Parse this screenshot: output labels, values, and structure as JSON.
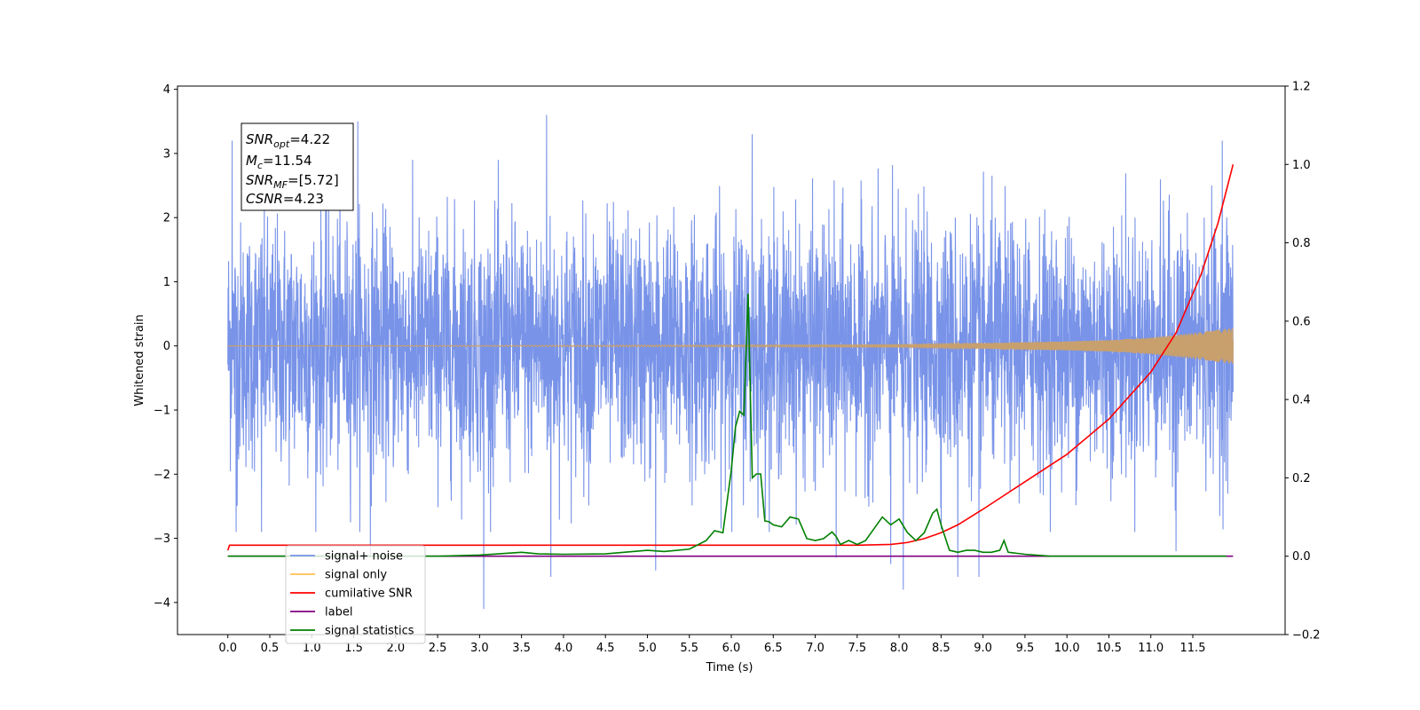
{
  "chart_data": {
    "type": "line",
    "title": "",
    "xlabel": "Time (s)",
    "ylabel": "Whitened strain",
    "xlim": [
      -0.6,
      12.6
    ],
    "ylim": [
      -4.5,
      4.05
    ],
    "y2lim": [
      -0.2,
      1.2
    ],
    "x_ticks": [
      0.0,
      0.5,
      1.0,
      1.5,
      2.0,
      2.5,
      3.0,
      3.5,
      4.0,
      4.5,
      5.0,
      5.5,
      6.0,
      6.5,
      7.0,
      7.5,
      8.0,
      8.5,
      9.0,
      9.5,
      10.0,
      10.5,
      11.0,
      11.5
    ],
    "x_tick_labels": [
      "0.0",
      "0.5",
      "1.0",
      "1.5",
      "2.0",
      "2.5",
      "3.0",
      "3.5",
      "4.0",
      "4.5",
      "5.0",
      "5.5",
      "6.0",
      "6.5",
      "7.0",
      "7.5",
      "8.0",
      "8.5",
      "9.0",
      "9.5",
      "10.0",
      "10.5",
      "11.0",
      "11.5"
    ],
    "y_ticks": [
      -4,
      -3,
      -2,
      -1,
      0,
      1,
      2,
      3,
      4
    ],
    "y_tick_labels": [
      "−4",
      "−3",
      "−2",
      "−1",
      "0",
      "1",
      "2",
      "3",
      "4"
    ],
    "y2_ticks": [
      -0.2,
      0.0,
      0.2,
      0.4,
      0.6,
      0.8,
      1.0,
      1.2
    ],
    "y2_tick_labels": [
      "−0.2",
      "0.0",
      "0.2",
      "0.4",
      "0.6",
      "0.8",
      "1.0",
      "1.2"
    ],
    "grid": false,
    "series": [
      {
        "name": "signal+ noise",
        "axis": "left",
        "color": "#7893e8",
        "style": "dense noise between about -2.3 and 2.3 with spikes to about 3.6 and -4.1",
        "x_range": [
          0.0,
          11.98
        ],
        "spikes": [
          [
            0.05,
            3.2
          ],
          [
            0.1,
            -2.9
          ],
          [
            0.4,
            -2.9
          ],
          [
            1.55,
            3.5
          ],
          [
            1.7,
            -3.3
          ],
          [
            3.05,
            -4.1
          ],
          [
            3.8,
            3.6
          ],
          [
            3.85,
            -3.6
          ],
          [
            5.1,
            -3.5
          ],
          [
            6.25,
            3.3
          ],
          [
            7.25,
            -3.3
          ],
          [
            7.9,
            -3.4
          ],
          [
            8.05,
            -3.8
          ],
          [
            8.7,
            -3.6
          ],
          [
            8.95,
            -3.6
          ],
          [
            11.3,
            -3.2
          ],
          [
            11.85,
            3.2
          ]
        ]
      },
      {
        "name": "signal only",
        "axis": "left",
        "color": "#ffa500",
        "style": "chirp oscillation near 0 growing in amplitude",
        "x": [
          0.0,
          8.0,
          9.0,
          10.0,
          10.5,
          11.0,
          11.5,
          11.98
        ],
        "envelope": [
          0.0,
          0.02,
          0.04,
          0.07,
          0.09,
          0.13,
          0.2,
          0.28
        ]
      },
      {
        "name": "cumilative SNR",
        "axis": "right",
        "color": "#ff0000",
        "x": [
          0.0,
          0.02,
          7.5,
          7.9,
          8.1,
          8.3,
          8.5,
          8.7,
          9.0,
          9.5,
          10.0,
          10.5,
          11.0,
          11.3,
          11.6,
          11.8,
          11.98
        ],
        "values": [
          0.015,
          0.028,
          0.028,
          0.03,
          0.035,
          0.045,
          0.06,
          0.08,
          0.12,
          0.19,
          0.26,
          0.35,
          0.47,
          0.57,
          0.72,
          0.85,
          1.0
        ]
      },
      {
        "name": "label",
        "axis": "right",
        "color": "#800080",
        "x": [
          0.0,
          11.98
        ],
        "values": [
          0.0,
          0.0
        ]
      },
      {
        "name": "signal statistics",
        "axis": "right",
        "color": "#008000",
        "x": [
          0.0,
          2.5,
          3.0,
          3.5,
          3.7,
          4.0,
          4.5,
          5.0,
          5.2,
          5.5,
          5.7,
          5.8,
          5.9,
          6.0,
          6.05,
          6.1,
          6.15,
          6.2,
          6.25,
          6.3,
          6.35,
          6.4,
          6.45,
          6.5,
          6.6,
          6.7,
          6.8,
          6.9,
          7.0,
          7.1,
          7.2,
          7.25,
          7.3,
          7.4,
          7.5,
          7.6,
          7.7,
          7.8,
          7.9,
          8.0,
          8.1,
          8.2,
          8.3,
          8.4,
          8.45,
          8.5,
          8.6,
          8.7,
          8.8,
          8.9,
          9.0,
          9.1,
          9.2,
          9.25,
          9.3,
          9.5,
          9.8,
          11.9
        ],
        "values": [
          0.0,
          0.0,
          0.003,
          0.01,
          0.006,
          0.005,
          0.006,
          0.015,
          0.012,
          0.018,
          0.04,
          0.065,
          0.06,
          0.22,
          0.33,
          0.37,
          0.36,
          0.67,
          0.2,
          0.21,
          0.21,
          0.09,
          0.088,
          0.08,
          0.075,
          0.1,
          0.095,
          0.045,
          0.04,
          0.045,
          0.062,
          0.05,
          0.03,
          0.04,
          0.03,
          0.04,
          0.07,
          0.1,
          0.08,
          0.095,
          0.06,
          0.04,
          0.06,
          0.11,
          0.12,
          0.08,
          0.015,
          0.01,
          0.015,
          0.015,
          0.01,
          0.01,
          0.015,
          0.04,
          0.01,
          0.005,
          0.0,
          0.0
        ]
      }
    ],
    "legend": {
      "placement": "lower-left",
      "entries": [
        {
          "label": "signal+ noise",
          "color": "#7893e8"
        },
        {
          "label": "signal only",
          "color": "#ffbf50"
        },
        {
          "label": "cumilative SNR",
          "color": "#ff0000"
        },
        {
          "label": "label",
          "color": "#800080"
        },
        {
          "label": "signal statistics",
          "color": "#008000"
        }
      ]
    },
    "annotation": {
      "lines": [
        {
          "main": "SNR",
          "sub": "opt",
          "rest": "=4.22"
        },
        {
          "main": "M",
          "sub": "c",
          "rest": "=11.54"
        },
        {
          "main": "SNR",
          "sub": "MF",
          "rest": "=[5.72]"
        },
        {
          "main": "CSNR",
          "sub": "",
          "rest": "=4.23"
        }
      ]
    }
  }
}
